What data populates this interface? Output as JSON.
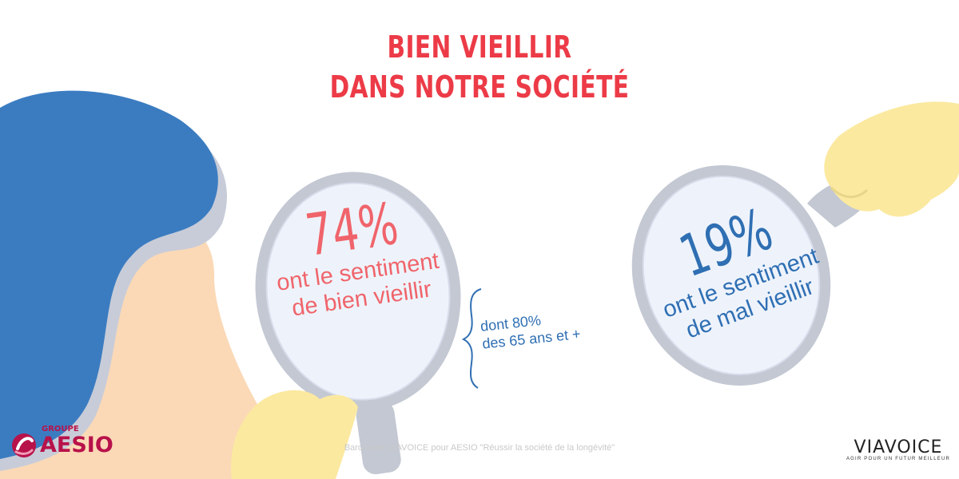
{
  "title": {
    "line1": "BIEN VIEILLIR",
    "line2": "DANS NOTRE SOCIÉTÉ"
  },
  "left_stat": {
    "value": "74%",
    "line1": "ont le sentiment",
    "line2": "de bien vieillir"
  },
  "note": {
    "line1": "dont 80%",
    "line2": "des 65 ans et +"
  },
  "right_stat": {
    "value": "19%",
    "line1": "ont le sentiment",
    "line2": "de mal vieillir"
  },
  "source": "Baromètre VIAVOICE pour AESIO \"Réussir la société de la longévité\"",
  "logos": {
    "aesio_group": "GROUPE",
    "aesio_name": "AESIO",
    "viavoice_name": "VIAVOICE",
    "viavoice_tagline": "AGIR POUR UN FUTUR MEILLEUR"
  },
  "colors": {
    "title_red": "#ec3b47",
    "stat_pink": "#f0646b",
    "stat_blue": "#2f6fb3",
    "hair_blue": "#3b7cc1",
    "skin": "#fbd9b6",
    "hand_yellow": "#fbe9a0",
    "mirror_frame": "#c3c8d3",
    "mirror_glass": "#eef3fb",
    "aesio_magenta": "#b8124a"
  }
}
